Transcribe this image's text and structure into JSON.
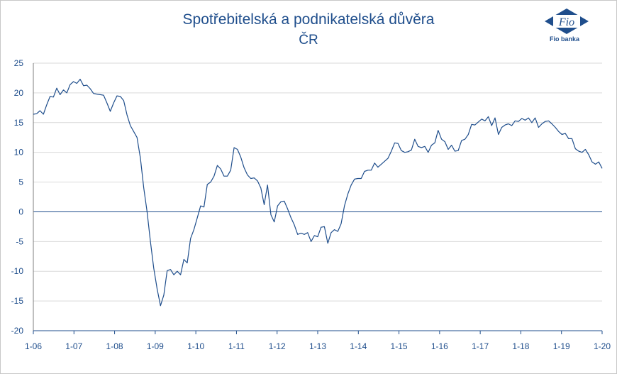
{
  "chart_data": {
    "type": "line",
    "title": "Spotřebitelská a podnikatelská důvěra",
    "subtitle": "ČR",
    "ylim": [
      -20,
      25
    ],
    "y_ticks": [
      25,
      20,
      15,
      10,
      5,
      0,
      -5,
      -10,
      -15,
      -20
    ],
    "x_ticks": [
      "1-06",
      "1-07",
      "1-08",
      "1-09",
      "1-10",
      "1-11",
      "1-12",
      "1-13",
      "1-14",
      "1-15",
      "1-16",
      "1-17",
      "1-18",
      "1-19",
      "1-20"
    ],
    "grid": true,
    "line_color": "#1f4e8c",
    "grid_color": "#d9d9d9",
    "series": [
      {
        "values": [
          16.4,
          16.5,
          17.0,
          16.4,
          18.0,
          19.4,
          19.3,
          20.8,
          19.7,
          20.5,
          20.0,
          21.4,
          21.9,
          21.6,
          22.3,
          21.2,
          21.3,
          20.7,
          19.9,
          19.8,
          19.7,
          19.6,
          18.3,
          16.9,
          18.3,
          19.5,
          19.4,
          18.7,
          16.3,
          14.5,
          13.5,
          12.5,
          9.0,
          4.0,
          0.0,
          -5.0,
          -9.5,
          -13.0,
          -15.8,
          -14.0,
          -9.9,
          -9.7,
          -10.6,
          -10.0,
          -10.6,
          -8.0,
          -8.6,
          -4.5,
          -3.0,
          -1.0,
          1.0,
          0.8,
          4.6,
          5.0,
          6.0,
          7.8,
          7.2,
          6.0,
          6.0,
          7.0,
          10.8,
          10.5,
          9.2,
          7.4,
          6.2,
          5.6,
          5.7,
          5.2,
          4.0,
          1.2,
          4.5,
          -0.5,
          -1.7,
          1.0,
          1.7,
          1.8,
          0.5,
          -1.0,
          -2.2,
          -3.8,
          -3.6,
          -3.8,
          -3.5,
          -5.0,
          -4.0,
          -4.2,
          -2.6,
          -2.5,
          -5.3,
          -3.5,
          -3.0,
          -3.3,
          -2.0,
          1.0,
          3.0,
          4.5,
          5.5,
          5.6,
          5.6,
          6.8,
          7.0,
          7.0,
          8.2,
          7.5,
          8.0,
          8.5,
          9.0,
          10.2,
          11.6,
          11.5,
          10.3,
          10.0,
          10.1,
          10.4,
          12.2,
          11.0,
          10.8,
          11.0,
          10.0,
          11.2,
          11.6,
          13.7,
          12.2,
          11.8,
          10.5,
          11.2,
          10.2,
          10.3,
          12.0,
          12.2,
          13.0,
          14.7,
          14.6,
          15.1,
          15.6,
          15.3,
          16.0,
          14.5,
          15.8,
          13.0,
          14.2,
          14.6,
          14.8,
          14.5,
          15.3,
          15.2,
          15.7,
          15.4,
          15.8,
          15.0,
          15.8,
          14.2,
          14.8,
          15.2,
          15.3,
          14.8,
          14.2,
          13.5,
          13.0,
          13.2,
          12.3,
          12.3,
          10.6,
          10.2,
          10.0,
          10.5,
          9.6,
          8.4,
          8.0,
          8.4,
          7.3
        ]
      }
    ]
  },
  "logo": {
    "text": "Fio",
    "caption": "Fio banka",
    "color": "#1f4e8c"
  }
}
